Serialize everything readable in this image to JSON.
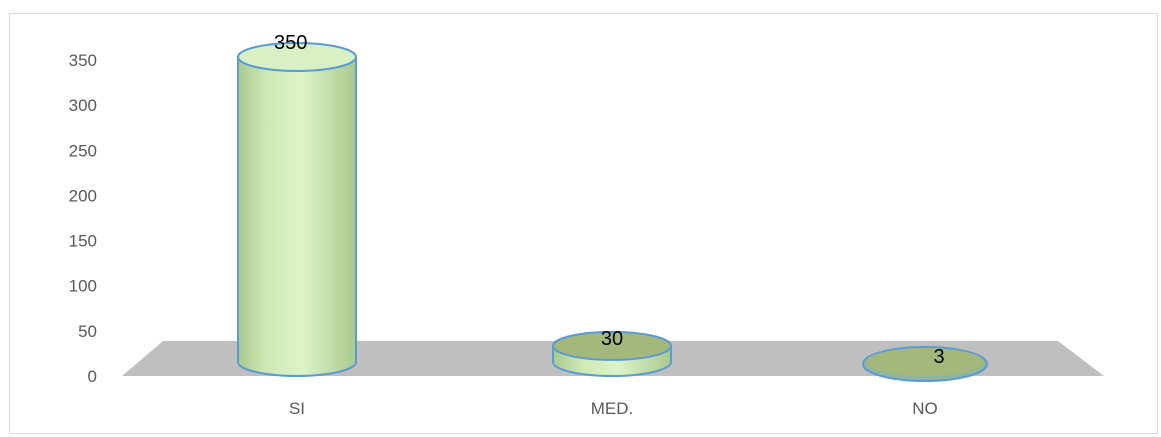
{
  "chart_data": {
    "type": "bar",
    "style": "3d-cylinder",
    "categories": [
      "SI",
      "MED.",
      "NO"
    ],
    "values": [
      350,
      30,
      3
    ],
    "data_labels": [
      "350",
      "30",
      "3"
    ],
    "title": "",
    "xlabel": "",
    "ylabel": "",
    "ylim": [
      0,
      350
    ],
    "yticks": [
      0,
      50,
      100,
      150,
      200,
      250,
      300,
      350
    ],
    "ytick_labels": [
      "0",
      "50",
      "100",
      "150",
      "200",
      "250",
      "300",
      "350"
    ],
    "grid": false,
    "legend": "none",
    "colors": {
      "bar_fill": "#d9f0c4",
      "bar_fill_dark": "#9fbf80",
      "bar_top": "#a3b87a",
      "bar_edge": "#5b9bd5",
      "floor": "#bfbfbf"
    }
  }
}
